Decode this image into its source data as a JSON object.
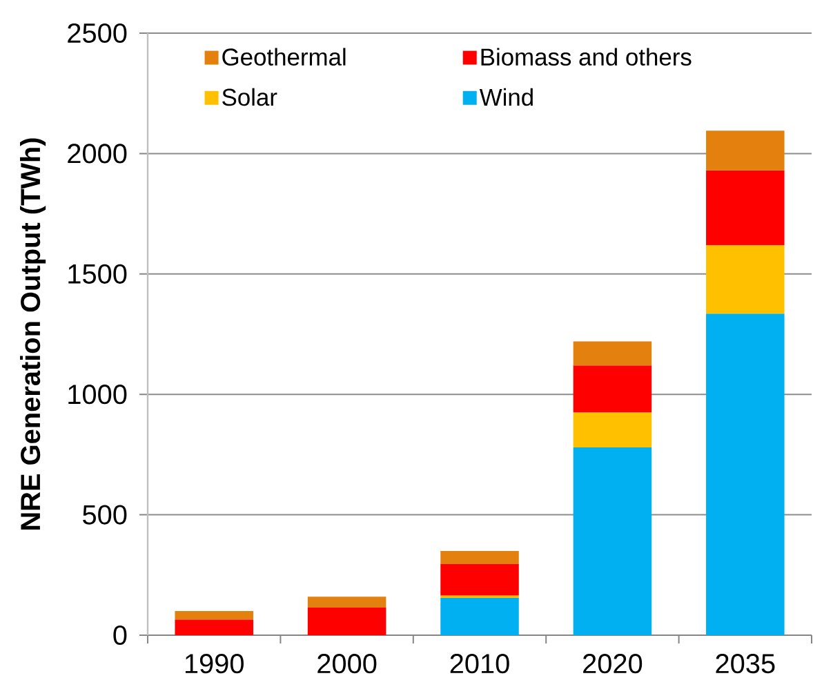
{
  "chart_data": {
    "type": "bar",
    "stacked": true,
    "ylabel": "NRE Generation Output (TWh)",
    "categories": [
      "1990",
      "2000",
      "2010",
      "2020",
      "2035"
    ],
    "series": [
      {
        "name": "Wind",
        "color": "#00b0f0",
        "values": [
          null,
          null,
          155,
          780,
          1335
        ]
      },
      {
        "name": "Solar",
        "color": "#ffc000",
        "values": [
          null,
          null,
          10,
          145,
          285
        ]
      },
      {
        "name": "Biomass and others",
        "color": "#ff0000",
        "values": [
          65,
          115,
          130,
          195,
          310
        ]
      },
      {
        "name": "Geothermal",
        "color": "#e3800e",
        "values": [
          35,
          45,
          55,
          100,
          165
        ]
      }
    ],
    "ylim": [
      0,
      2500
    ],
    "yticks": [
      0,
      500,
      1000,
      1500,
      2000,
      2500
    ],
    "grid": "y",
    "legend": "top"
  }
}
